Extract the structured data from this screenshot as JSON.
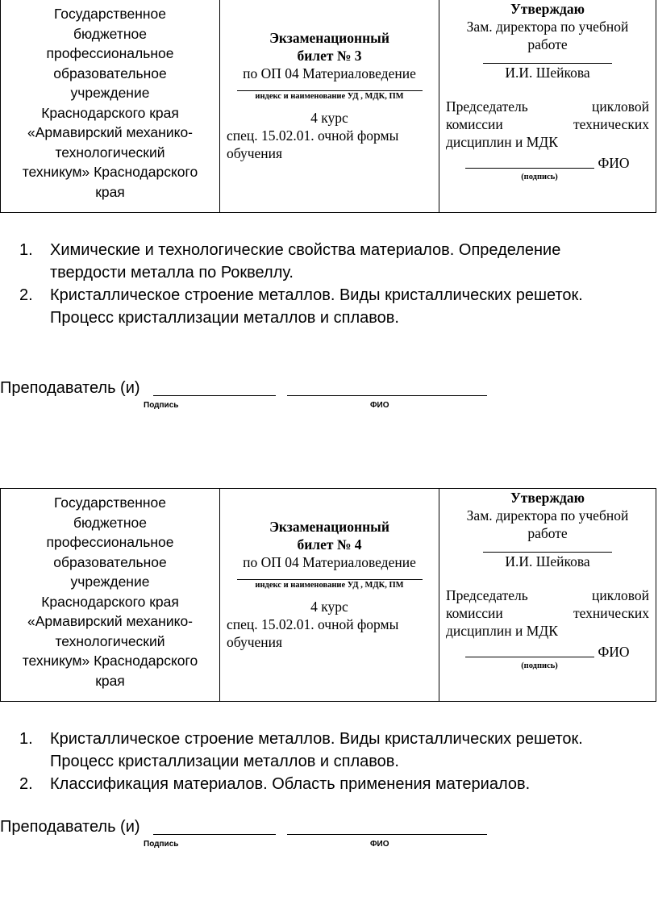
{
  "tickets": [
    {
      "institution": [
        "Государственное",
        "бюджетное",
        "профессиональное",
        "образовательное",
        "учреждение",
        "Краснодарского края",
        "«Армавирский механико-",
        "технологический",
        "техникум» Краснодарского",
        "края"
      ],
      "title_line1": "Экзаменационный",
      "title_line2": "билет № 3",
      "subject": "по ОП 04 Материаловедение",
      "subject_caption": "индекс и наименование УД , МДК, ПМ",
      "course": "4 курс",
      "spec_line1": "спец. 15.02.01.   очной формы",
      "spec_line2": "обучения",
      "approve": "Утверждаю",
      "deputy_line1": "Зам. директора по учебной",
      "deputy_line2": "работе",
      "deputy_name": "И.И. Шейкова",
      "chair_line1": "Председатель цикловой",
      "chair_line2": "комиссии технических",
      "chair_line3": "дисциплин и МДК",
      "fio": "ФИО",
      "signature_caption": "(подпись)",
      "questions": [
        {
          "num": "1.",
          "lines": [
            "Химические и технологические свойства материалов. Определение",
            "твердости металла по Роквеллу."
          ]
        },
        {
          "num": "2.",
          "lines": [
            "Кристаллическое строение металлов. Виды кристаллических решеток.",
            "Процесс кристаллизации металлов и сплавов."
          ]
        }
      ],
      "teacher": "Преподаватель (и)",
      "sign_caption": "Подпись",
      "fio_caption": "ФИО"
    },
    {
      "institution": [
        "Государственное",
        "бюджетное",
        "профессиональное",
        "образовательное",
        "учреждение",
        "Краснодарского края",
        "«Армавирский механико-",
        "технологический",
        "техникум» Краснодарского",
        "края"
      ],
      "title_line1": "Экзаменационный",
      "title_line2": "билет № 4",
      "subject": "по ОП 04 Материаловедение",
      "subject_caption": "индекс и наименование УД , МДК, ПМ",
      "course": "4 курс",
      "spec_line1": "спец. 15.02.01.   очной формы",
      "spec_line2": "обучения",
      "approve": "Утверждаю",
      "deputy_line1": "Зам. директора по учебной",
      "deputy_line2": "работе",
      "deputy_name": "И.И. Шейкова",
      "chair_line1": "Председатель цикловой",
      "chair_line2": "комиссии технических",
      "chair_line3": "дисциплин и МДК",
      "fio": "ФИО",
      "signature_caption": "(подпись)",
      "questions": [
        {
          "num": "1.",
          "lines": [
            "Кристаллическое строение металлов. Виды кристаллических решеток.",
            "Процесс кристаллизации металлов и сплавов."
          ]
        },
        {
          "num": "2.",
          "lines": [
            "Классификация материалов. Область применения материалов."
          ]
        }
      ],
      "teacher": "Преподаватель (и)",
      "sign_caption": "Подпись",
      "fio_caption": "ФИО"
    }
  ]
}
